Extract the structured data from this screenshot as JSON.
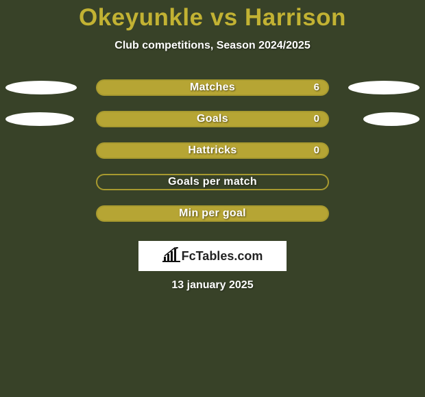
{
  "background_color": "#384228",
  "title": {
    "player_a": "Okeyunkle",
    "vs": "vs",
    "player_b": "Harrison",
    "color_a": "#c2b233",
    "color_vs": "#c2b233",
    "color_b": "#c2b233",
    "fontsize": 35
  },
  "subtitle": {
    "text": "Club competitions, Season 2024/2025",
    "color": "#ffffff",
    "fontsize": 16
  },
  "ellipse": {
    "color": "#ffffff",
    "height": 20
  },
  "rows": [
    {
      "label": "Matches",
      "value": "6",
      "bar_outer_color": "#a89a2f",
      "bar_inner_color": "#b6a534",
      "left_ellipse_width": 104,
      "right_ellipse_width": 104,
      "show_value": true
    },
    {
      "label": "Goals",
      "value": "0",
      "bar_outer_color": "#a89a2f",
      "bar_inner_color": "#b6a534",
      "left_ellipse_width": 100,
      "right_ellipse_width": 82,
      "show_value": true
    },
    {
      "label": "Hattricks",
      "value": "0",
      "bar_outer_color": "#a89a2f",
      "bar_inner_color": "#b6a534",
      "left_ellipse_width": 0,
      "right_ellipse_width": 0,
      "show_value": true
    },
    {
      "label": "Goals per match",
      "value": "",
      "bar_outer_color": "#a89a2f",
      "bar_inner_color": "#384228",
      "left_ellipse_width": 0,
      "right_ellipse_width": 0,
      "show_value": false
    },
    {
      "label": "Min per goal",
      "value": "",
      "bar_outer_color": "#a89a2f",
      "bar_inner_color": "#b6a534",
      "left_ellipse_width": 0,
      "right_ellipse_width": 0,
      "show_value": false
    }
  ],
  "bar": {
    "outer_width": 340,
    "outer_radius": 12,
    "inner_radius": 10,
    "label_color": "#ffffff",
    "label_fontsize": 16
  },
  "logo": {
    "text": "FcTables.com",
    "box_bg": "#ffffff",
    "text_color": "#222222",
    "bar_color": "#111111",
    "fontsize": 18
  },
  "date": {
    "text": "13 january 2025",
    "color": "#ffffff",
    "fontsize": 16
  }
}
